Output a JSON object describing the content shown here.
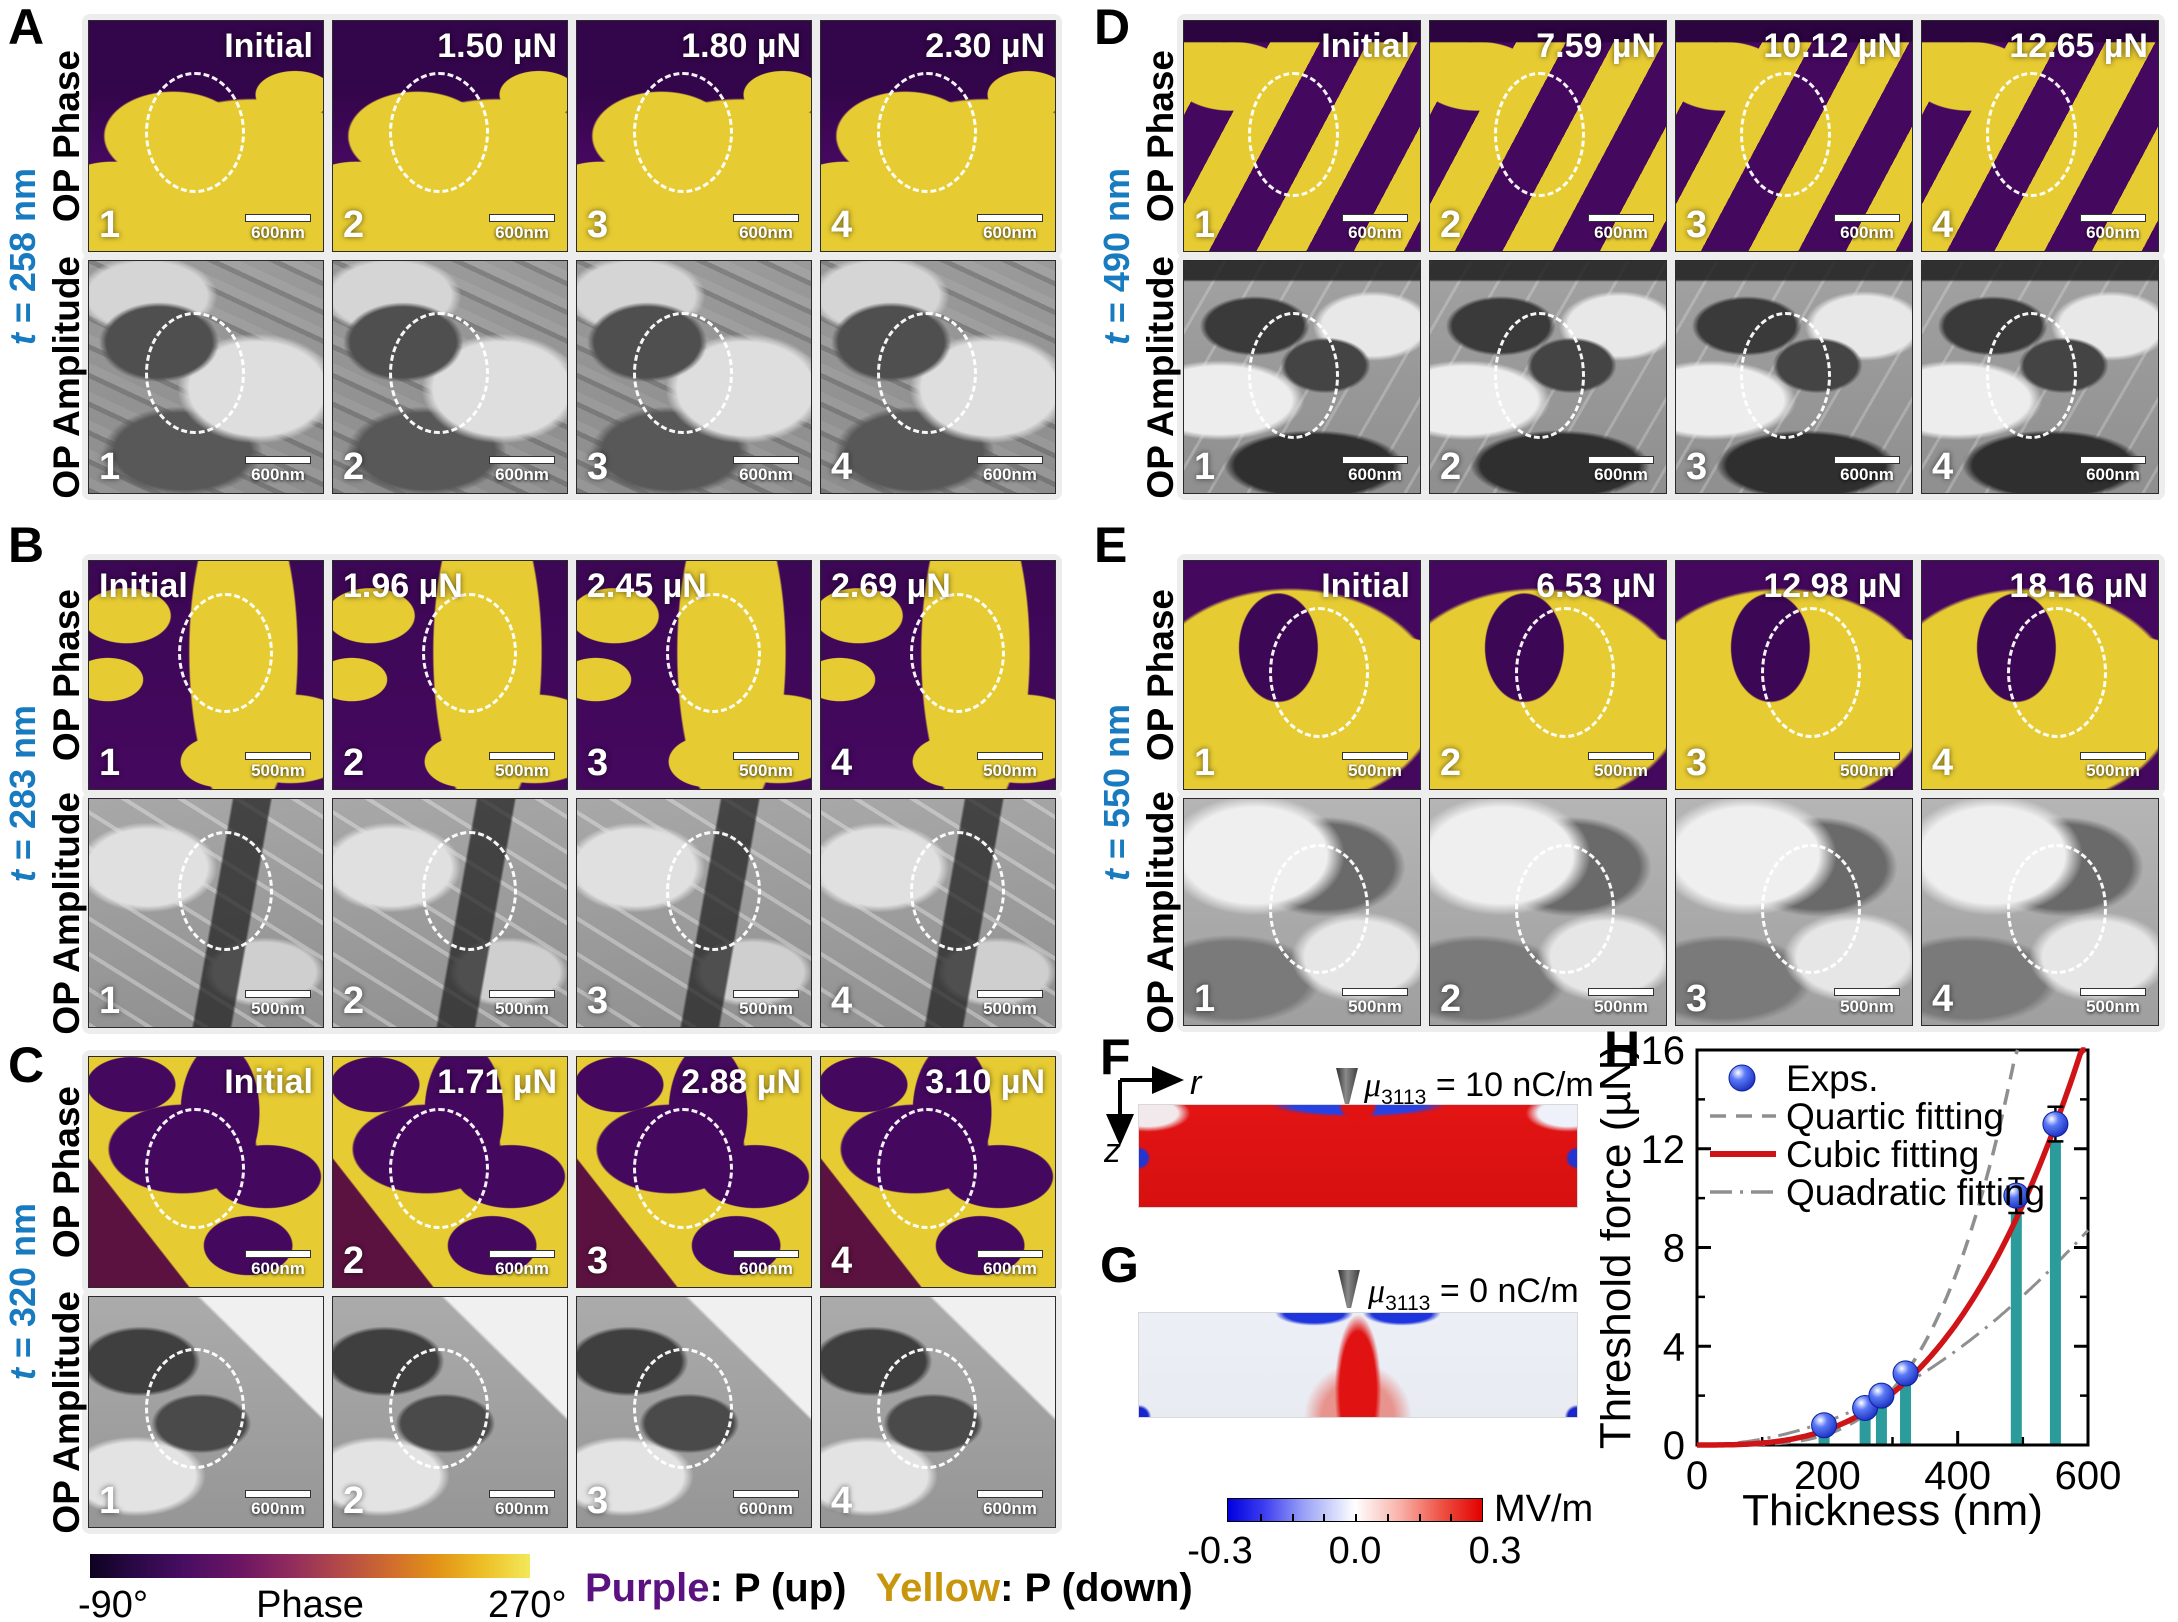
{
  "panels": [
    {
      "letter": "A",
      "thickness": "t = 258 nm",
      "row_labels": [
        "OP Phase",
        "OP Amplitude"
      ],
      "forces": [
        "Initial",
        "1.50 µN",
        "1.80 µN",
        "2.30 µN"
      ],
      "force_label_pos": "right",
      "scale_bar": "600nm",
      "numbers_phase": [
        "1",
        "2",
        "3",
        "4"
      ],
      "numbers_amp": [
        "1",
        "2",
        "3",
        "4"
      ]
    },
    {
      "letter": "B",
      "thickness": "t = 283 nm",
      "row_labels": [
        "OP Phase",
        "OP Amplitude"
      ],
      "forces": [
        "Initial",
        "1.96 µN",
        "2.45 µN",
        "2.69 µN"
      ],
      "force_label_pos": "left",
      "scale_bar": "500nm",
      "numbers_phase": [
        "1",
        "2",
        "3",
        "4"
      ],
      "numbers_amp": [
        "1",
        "2",
        "3",
        "4"
      ]
    },
    {
      "letter": "C",
      "thickness": "t = 320 nm",
      "row_labels": [
        "OP Phase",
        "OP Amplitude"
      ],
      "forces": [
        "Initial",
        "1.71 µN",
        "2.88 µN",
        "3.10 µN"
      ],
      "force_label_pos": "right",
      "scale_bar": "600nm",
      "numbers_phase": [
        "",
        "2",
        "3",
        "4"
      ],
      "numbers_amp": [
        "1",
        "2",
        "3",
        "4"
      ]
    },
    {
      "letter": "D",
      "thickness": "t = 490 nm",
      "row_labels": [
        "OP Phase",
        "OP Amplitude"
      ],
      "forces": [
        "Initial",
        "7.59 µN",
        "10.12 µN",
        "12.65 µN"
      ],
      "force_label_pos": "right",
      "scale_bar": "600nm",
      "numbers_phase": [
        "1",
        "2",
        "3",
        "4"
      ],
      "numbers_amp": [
        "1",
        "2",
        "3",
        "4"
      ]
    },
    {
      "letter": "E",
      "thickness": "t = 550 nm",
      "row_labels": [
        "OP Phase",
        "OP Amplitude"
      ],
      "forces": [
        "Initial",
        "6.53 µN",
        "12.98 µN",
        "18.16 µN"
      ],
      "force_label_pos": "right",
      "scale_bar": "500nm",
      "numbers_phase": [
        "1",
        "2",
        "3",
        "4"
      ],
      "numbers_amp": [
        "1",
        "2",
        "3",
        "4"
      ]
    }
  ],
  "fg": {
    "f_label": "F",
    "g_label": "G",
    "f_mu": "μ",
    "f_sub": "3113",
    "f_eq": " = 10 nC/m",
    "g_mu": "μ",
    "g_sub": "3113",
    "g_eq": " = 0 nC/m",
    "axis_h": "r",
    "axis_v": "z",
    "colorbar": {
      "min": "-0.3",
      "mid": "0.0",
      "max": "0.3",
      "unit": "MV/m"
    }
  },
  "phase_colorbar": {
    "min": "-90°",
    "title": "Phase",
    "max": "270°"
  },
  "polarization": {
    "purple_word": "Purple",
    "purple_rest": ": P (up)",
    "yellow_word": "Yellow",
    "yellow_rest": ": P (down)"
  },
  "h_label": "H",
  "chart_data": {
    "type": "scatter",
    "title": "",
    "xlabel": "Thickness (nm)",
    "ylabel": "Threshold force (µN)",
    "xlim": [
      0,
      600
    ],
    "ylim": [
      0,
      16
    ],
    "xticks": [
      0,
      200,
      400,
      600
    ],
    "xminor": [
      100,
      300,
      500
    ],
    "yticks": [
      0,
      4,
      8,
      12,
      16
    ],
    "yminor": [
      2,
      6,
      10,
      14
    ],
    "grid": false,
    "legend_position": "upper-left",
    "legend": [
      "Exps.",
      "Quartic fitting",
      "Cubic fitting",
      "Quadratic fitting"
    ],
    "points": {
      "name": "Exps.",
      "x": [
        195,
        258,
        283,
        320,
        490,
        550
      ],
      "y": [
        0.8,
        1.5,
        2.0,
        2.9,
        10.1,
        13.0
      ],
      "yerr": [
        0.15,
        0.2,
        0.2,
        0.3,
        0.7,
        0.7
      ],
      "marker_color": "#2a52e8"
    },
    "bars": {
      "color": "#2b9b9b",
      "width_nm": 17,
      "x": [
        195,
        258,
        283,
        320,
        490,
        550
      ],
      "top": [
        0.65,
        1.3,
        1.8,
        2.6,
        9.4,
        12.3
      ]
    },
    "fits": [
      {
        "name": "Quartic fitting",
        "style": "dashed",
        "color": "#8f8f8f",
        "k": 16,
        "x0": 490,
        "p": 4
      },
      {
        "name": "Cubic fitting",
        "style": "solid",
        "color": "#cf1418",
        "k": 16,
        "x0": 590,
        "p": 3
      },
      {
        "name": "Quadratic fitting",
        "style": "dashdot",
        "color": "#8f8f8f",
        "k": 8.7,
        "x0": 600,
        "p": 2
      }
    ]
  }
}
